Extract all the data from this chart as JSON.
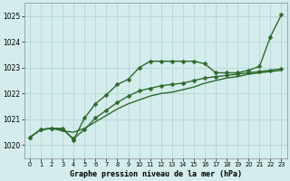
{
  "title": "Graphe pression niveau de la mer (hPa)",
  "bg_color": "#d4ecec",
  "grid_color": "#b8d8d8",
  "line_color": "#2d6a2d",
  "xlim": [
    -0.5,
    23.5
  ],
  "ylim": [
    1019.5,
    1025.5
  ],
  "yticks": [
    1020,
    1021,
    1022,
    1023,
    1024,
    1025
  ],
  "xticks": [
    0,
    1,
    2,
    3,
    4,
    5,
    6,
    7,
    8,
    9,
    10,
    11,
    12,
    13,
    14,
    15,
    16,
    17,
    18,
    19,
    20,
    21,
    22,
    23
  ],
  "line1_x": [
    0,
    1,
    2,
    3,
    4,
    5,
    6,
    7,
    8,
    9,
    10,
    11,
    12,
    13,
    14,
    15,
    16,
    17,
    18,
    19,
    20,
    21,
    22,
    23
  ],
  "line1_y": [
    1020.3,
    1020.6,
    1020.65,
    1020.55,
    1020.5,
    1020.65,
    1020.9,
    1021.15,
    1021.4,
    1021.6,
    1021.75,
    1021.9,
    1022.0,
    1022.05,
    1022.15,
    1022.25,
    1022.4,
    1022.5,
    1022.6,
    1022.65,
    1022.75,
    1022.8,
    1022.85,
    1022.9
  ],
  "line2_x": [
    0,
    1,
    2,
    3,
    4,
    5,
    6,
    7,
    8,
    9,
    10,
    11,
    12,
    13,
    14,
    15,
    16,
    17,
    18,
    19,
    20,
    21,
    22,
    23
  ],
  "line2_y": [
    1020.3,
    1020.6,
    1020.65,
    1020.6,
    1020.25,
    1020.6,
    1021.05,
    1021.35,
    1021.65,
    1021.9,
    1022.1,
    1022.2,
    1022.3,
    1022.35,
    1022.4,
    1022.5,
    1022.6,
    1022.65,
    1022.7,
    1022.75,
    1022.8,
    1022.85,
    1022.9,
    1022.95
  ],
  "line3_x": [
    0,
    1,
    2,
    3,
    4,
    5,
    6,
    7,
    8,
    9,
    10,
    11,
    12,
    13,
    14,
    15,
    16,
    17,
    18,
    19,
    20,
    21,
    22,
    23
  ],
  "line3_y": [
    1020.3,
    1020.6,
    1020.65,
    1020.65,
    1020.2,
    1021.05,
    1021.6,
    1021.95,
    1022.35,
    1022.55,
    1023.0,
    1023.25,
    1023.25,
    1023.25,
    1023.25,
    1023.25,
    1023.15,
    1022.8,
    1022.8,
    1022.8,
    1022.9,
    1023.05,
    1024.2,
    1025.05
  ]
}
